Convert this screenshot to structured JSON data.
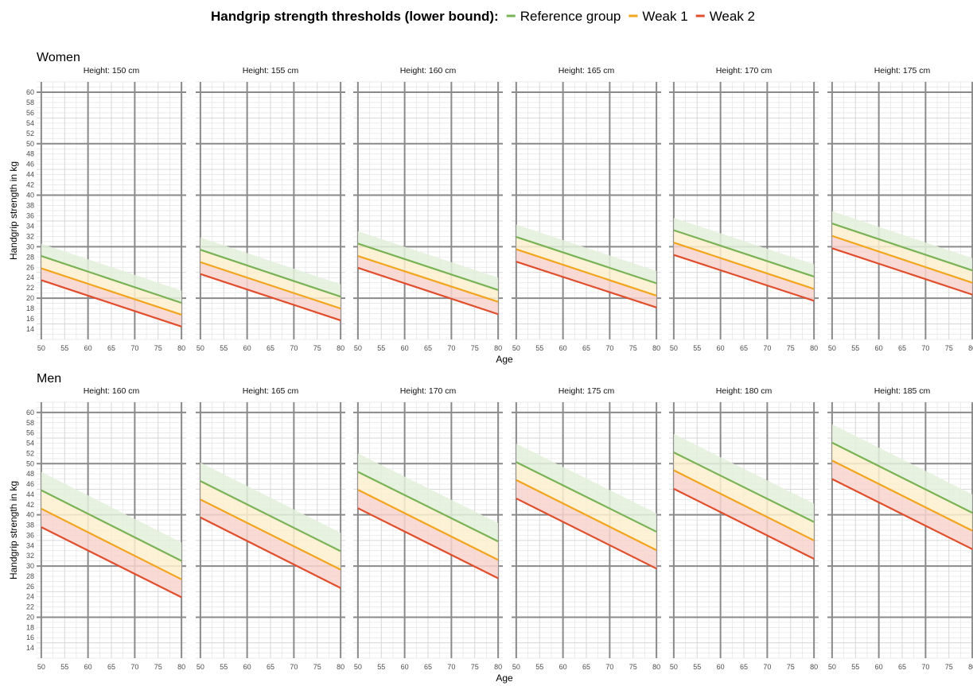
{
  "legend": {
    "title": "Handgrip strength thresholds (lower bound):",
    "items": [
      {
        "label": "Reference group",
        "color": "#7ab356"
      },
      {
        "label": "Weak 1",
        "color": "#f2a51f"
      },
      {
        "label": "Weak 2",
        "color": "#e04e2d"
      }
    ]
  },
  "chart_data": {
    "type": "line",
    "x_label": "Age",
    "y_label": "Handgrip strength in kg",
    "x_ticks": [
      50,
      55,
      60,
      65,
      70,
      75,
      80
    ],
    "y_ticks": [
      14,
      16,
      18,
      20,
      22,
      24,
      26,
      28,
      30,
      32,
      34,
      36,
      38,
      40,
      42,
      44,
      46,
      48,
      50,
      52,
      54,
      56,
      58,
      60
    ],
    "xlim": [
      49,
      81
    ],
    "ylim": [
      12,
      62
    ],
    "grid": true,
    "legend_position": "top",
    "series_names": [
      "Reference group",
      "Weak 1",
      "Weak 2"
    ],
    "rows": [
      {
        "title": "Women",
        "panels": [
          {
            "label": "Height: 150 cm",
            "ref": [
              28.2,
              19.1
            ],
            "w1": [
              25.8,
              16.8
            ],
            "w2": [
              23.5,
              14.5
            ],
            "upper": [
              30.6,
              21.5
            ]
          },
          {
            "label": "Height: 155 cm",
            "ref": [
              29.4,
              20.3
            ],
            "w1": [
              27.0,
              18.0
            ],
            "w2": [
              24.7,
              15.7
            ],
            "upper": [
              31.8,
              22.7
            ]
          },
          {
            "label": "Height: 160 cm",
            "ref": [
              30.6,
              21.6
            ],
            "w1": [
              28.2,
              19.3
            ],
            "w2": [
              25.9,
              16.9
            ],
            "upper": [
              33.0,
              24.0
            ]
          },
          {
            "label": "Height: 165 cm",
            "ref": [
              31.9,
              22.9
            ],
            "w1": [
              29.5,
              20.5
            ],
            "w2": [
              27.1,
              18.2
            ],
            "upper": [
              34.3,
              25.3
            ]
          },
          {
            "label": "Height: 170 cm",
            "ref": [
              33.2,
              24.2
            ],
            "w1": [
              30.8,
              21.8
            ],
            "w2": [
              28.4,
              19.5
            ],
            "upper": [
              35.6,
              26.6
            ]
          },
          {
            "label": "Height: 175 cm",
            "ref": [
              34.5,
              25.4
            ],
            "w1": [
              32.1,
              23.0
            ],
            "w2": [
              29.7,
              20.7
            ],
            "upper": [
              36.9,
              27.8
            ]
          }
        ]
      },
      {
        "title": "Men",
        "panels": [
          {
            "label": "Height: 160 cm",
            "ref": [
              44.8,
              31.0
            ],
            "w1": [
              41.2,
              27.4
            ],
            "w2": [
              37.6,
              23.9
            ],
            "upper": [
              48.4,
              34.6
            ]
          },
          {
            "label": "Height: 165 cm",
            "ref": [
              46.6,
              32.9
            ],
            "w1": [
              43.0,
              29.3
            ],
            "w2": [
              39.5,
              25.7
            ],
            "upper": [
              50.2,
              36.5
            ]
          },
          {
            "label": "Height: 170 cm",
            "ref": [
              48.4,
              34.8
            ],
            "w1": [
              44.9,
              31.2
            ],
            "w2": [
              41.3,
              27.6
            ],
            "upper": [
              52.0,
              38.4
            ]
          },
          {
            "label": "Height: 175 cm",
            "ref": [
              50.3,
              36.7
            ],
            "w1": [
              46.8,
              33.1
            ],
            "w2": [
              43.2,
              29.5
            ],
            "upper": [
              53.9,
              40.3
            ]
          },
          {
            "label": "Height: 180 cm",
            "ref": [
              52.2,
              38.6
            ],
            "w1": [
              48.7,
              35.0
            ],
            "w2": [
              45.1,
              31.4
            ],
            "upper": [
              55.8,
              42.2
            ]
          },
          {
            "label": "Height: 185 cm",
            "ref": [
              54.1,
              40.4
            ],
            "w1": [
              50.6,
              36.9
            ],
            "w2": [
              47.0,
              33.3
            ],
            "upper": [
              57.7,
              44.0
            ]
          }
        ]
      }
    ]
  }
}
